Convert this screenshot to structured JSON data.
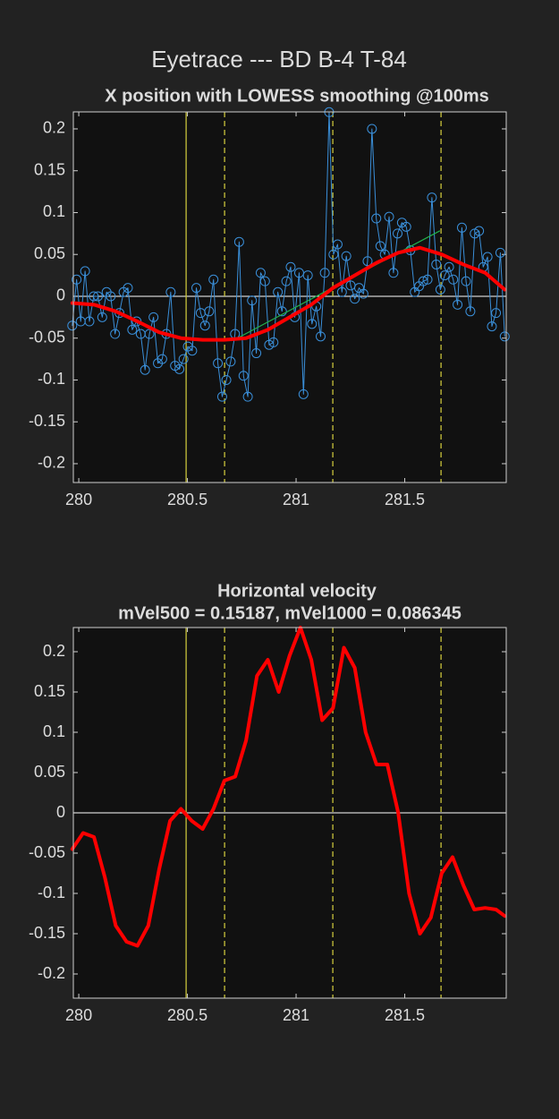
{
  "figure_title": "Eyetrace --- BD B-4 T-84",
  "chart_data": [
    {
      "type": "line",
      "title": "X position with LOWESS smoothing @100ms",
      "xlim": [
        279.975,
        281.967
      ],
      "ylim": [
        -0.2225,
        0.2203
      ],
      "xticks": [
        280,
        280.5,
        281,
        281.5
      ],
      "yticks": [
        -0.2,
        -0.15,
        -0.1,
        -0.05,
        0,
        0.05,
        0.1,
        0.15,
        0.2
      ],
      "grid": false,
      "zero_line": true,
      "vlines": [
        {
          "x": 280.494,
          "style": "solid",
          "color": "#c8c23a"
        },
        {
          "x": 280.671,
          "style": "dashed",
          "color": "#c8c23a"
        },
        {
          "x": 281.169,
          "style": "dashed",
          "color": "#c8c23a"
        },
        {
          "x": 281.667,
          "style": "dashed",
          "color": "#c8c23a"
        }
      ],
      "series": [
        {
          "color": "#3a8fd9",
          "width": 1,
          "marker": "circle",
          "x": [
            279.97,
            279.99,
            280.009,
            280.029,
            280.049,
            280.069,
            280.088,
            280.108,
            280.128,
            280.147,
            280.167,
            280.187,
            280.206,
            280.226,
            280.246,
            280.266,
            280.285,
            280.305,
            280.325,
            280.344,
            280.364,
            280.384,
            280.403,
            280.423,
            280.443,
            280.463,
            280.482,
            280.502,
            280.522,
            280.541,
            280.561,
            280.581,
            280.6,
            280.62,
            280.64,
            280.66,
            280.679,
            280.699,
            280.719,
            280.738,
            280.758,
            280.778,
            280.797,
            280.817,
            280.837,
            280.857,
            280.876,
            280.896,
            280.916,
            280.935,
            280.955,
            280.975,
            280.994,
            281.014,
            281.034,
            281.054,
            281.073,
            281.093,
            281.113,
            281.132,
            281.152,
            281.172,
            281.191,
            281.211,
            281.231,
            281.251,
            281.27,
            281.29,
            281.31,
            281.329,
            281.349,
            281.369,
            281.388,
            281.408,
            281.428,
            281.448,
            281.467,
            281.487,
            281.507,
            281.526,
            281.546,
            281.566,
            281.585,
            281.605,
            281.625,
            281.645,
            281.664,
            281.684,
            281.704,
            281.723,
            281.743,
            281.763,
            281.782,
            281.802,
            281.822,
            281.842,
            281.861,
            281.881,
            281.901,
            281.92,
            281.94,
            281.96
          ],
          "values": [
            -0.035,
            0.02,
            -0.03,
            0.03,
            -0.03,
            0.0,
            0.0,
            -0.025,
            0.005,
            0.0,
            -0.045,
            -0.02,
            0.005,
            0.01,
            -0.04,
            -0.03,
            -0.045,
            -0.088,
            -0.045,
            -0.025,
            -0.08,
            -0.075,
            -0.045,
            0.005,
            -0.083,
            -0.087,
            -0.075,
            -0.06,
            -0.065,
            0.01,
            -0.02,
            -0.035,
            -0.018,
            0.02,
            -0.08,
            -0.12,
            -0.1,
            -0.078,
            -0.045,
            0.065,
            -0.095,
            -0.12,
            -0.005,
            -0.068,
            0.028,
            0.018,
            -0.058,
            -0.055,
            0.005,
            -0.018,
            0.018,
            0.035,
            -0.025,
            0.028,
            -0.117,
            0.025,
            -0.033,
            -0.012,
            -0.048,
            0.028,
            0.22,
            0.05,
            0.062,
            0.005,
            0.048,
            0.013,
            -0.003,
            0.01,
            0.003,
            0.042,
            0.2,
            0.093,
            0.06,
            0.05,
            0.095,
            0.028,
            0.075,
            0.088,
            0.083,
            0.055,
            0.005,
            0.012,
            0.018,
            0.02,
            0.118,
            0.038,
            0.008,
            0.025,
            0.035,
            0.02,
            -0.01,
            0.082,
            0.018,
            -0.018,
            0.075,
            0.078,
            0.035,
            0.047,
            -0.036,
            -0.02,
            0.052,
            -0.048
          ]
        },
        {
          "color": "#22b14c",
          "width": 1.2,
          "x": [
            280.73,
            281.66
          ],
          "values": [
            -0.05,
            0.078
          ]
        },
        {
          "color": "#ff0000",
          "width": 4,
          "x": [
            279.97,
            280.07,
            280.17,
            280.27,
            280.37,
            280.47,
            280.57,
            280.67,
            280.77,
            280.87,
            280.97,
            281.07,
            281.17,
            281.27,
            281.37,
            281.47,
            281.57,
            281.67,
            281.77,
            281.87,
            281.96
          ],
          "values": [
            -0.008,
            -0.01,
            -0.018,
            -0.03,
            -0.043,
            -0.05,
            -0.052,
            -0.052,
            -0.05,
            -0.04,
            -0.025,
            -0.01,
            0.01,
            0.025,
            0.04,
            0.052,
            0.058,
            0.05,
            0.038,
            0.028,
            0.008
          ]
        }
      ]
    },
    {
      "type": "line",
      "title": "Horizontal velocity",
      "subtitle": "mVel500 = 0.15187, mVel1000 = 0.086345",
      "xlim": [
        279.975,
        281.967
      ],
      "ylim": [
        -0.23,
        0.23
      ],
      "xticks": [
        280,
        280.5,
        281,
        281.5
      ],
      "yticks": [
        -0.2,
        -0.15,
        -0.1,
        -0.05,
        0,
        0.05,
        0.1,
        0.15,
        0.2
      ],
      "grid": false,
      "zero_line": true,
      "vlines": [
        {
          "x": 280.494,
          "style": "solid",
          "color": "#c8c23a"
        },
        {
          "x": 280.671,
          "style": "dashed",
          "color": "#c8c23a"
        },
        {
          "x": 281.169,
          "style": "dashed",
          "color": "#c8c23a"
        },
        {
          "x": 281.667,
          "style": "dashed",
          "color": "#c8c23a"
        }
      ],
      "series": [
        {
          "color": "#ff0000",
          "width": 4,
          "x": [
            279.97,
            280.02,
            280.07,
            280.12,
            280.17,
            280.22,
            280.27,
            280.32,
            280.37,
            280.42,
            280.47,
            280.52,
            280.57,
            280.62,
            280.67,
            280.72,
            280.77,
            280.82,
            280.87,
            280.92,
            280.97,
            281.02,
            281.07,
            281.12,
            281.17,
            281.22,
            281.27,
            281.32,
            281.37,
            281.42,
            281.47,
            281.52,
            281.57,
            281.62,
            281.67,
            281.72,
            281.77,
            281.82,
            281.87,
            281.92,
            281.96
          ],
          "values": [
            -0.045,
            -0.025,
            -0.03,
            -0.08,
            -0.14,
            -0.16,
            -0.165,
            -0.14,
            -0.07,
            -0.01,
            0.005,
            -0.01,
            -0.02,
            0.005,
            0.04,
            0.045,
            0.09,
            0.17,
            0.19,
            0.15,
            0.195,
            0.23,
            0.19,
            0.115,
            0.13,
            0.205,
            0.18,
            0.1,
            0.06,
            0.06,
            0.0,
            -0.1,
            -0.15,
            -0.13,
            -0.075,
            -0.055,
            -0.09,
            -0.12,
            -0.118,
            -0.12,
            -0.128
          ]
        }
      ]
    }
  ]
}
